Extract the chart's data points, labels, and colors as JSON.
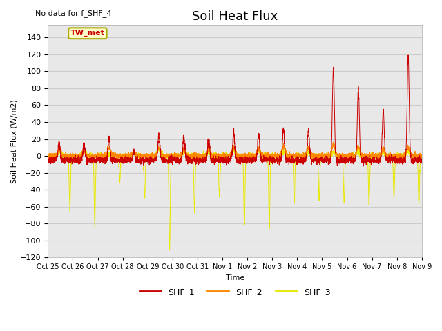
{
  "title": "Soil Heat Flux",
  "ylabel": "Soil Heat Flux (W/m2)",
  "xlabel": "Time",
  "note": "No data for f_SHF_4",
  "legend_label": "TW_met",
  "ylim": [
    -120,
    155
  ],
  "yticks": [
    -120,
    -100,
    -80,
    -60,
    -40,
    -20,
    0,
    20,
    40,
    60,
    80,
    100,
    120,
    140
  ],
  "xtick_labels": [
    "Oct 25",
    "Oct 26",
    "Oct 27",
    "Oct 28",
    "Oct 29",
    "Oct 30",
    "Oct 31",
    "Nov 1",
    "Nov 2",
    "Nov 3",
    "Nov 4",
    "Nov 5",
    "Nov 6",
    "Nov 7",
    "Nov 8",
    "Nov 9"
  ],
  "colors": {
    "SHF_1": "#cc0000",
    "SHF_2": "#ff8800",
    "SHF_3": "#e8e800",
    "background": "#e8e8e8",
    "tw_met_bg": "#ffffcc",
    "tw_met_border": "#aaaa00",
    "tw_met_text": "#cc0000",
    "grid": "#d0d0d0"
  },
  "num_days": 15,
  "points_per_day": 288
}
